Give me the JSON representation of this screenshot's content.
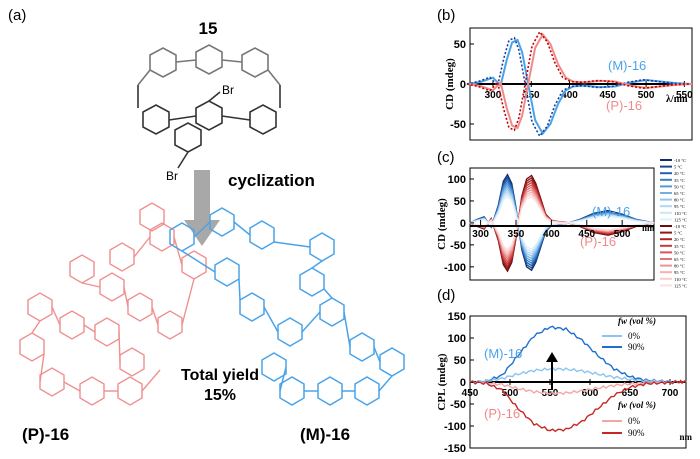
{
  "panel_a": {
    "label": "(a)",
    "compound": "15",
    "br_top": "Br",
    "br_bottom": "Br",
    "reaction": "cyclization",
    "yield_line1": "Total yield",
    "yield_line2": "15%",
    "p_label": "(P)-16",
    "m_label": "(M)-16",
    "colors": {
      "P": "#f08a8a",
      "M": "#4aa3e8",
      "gray": "#888888"
    }
  },
  "chart_data": [
    {
      "panel": "(b)",
      "type": "line",
      "ylabel": "CD (mdeg)",
      "xlabel": "λ/nm",
      "yticks": [
        "50",
        "0",
        "-50"
      ],
      "xticks": [
        "300",
        "350",
        "400",
        "450",
        "500",
        "550"
      ],
      "xlim": [
        270,
        560
      ],
      "ylim": [
        -70,
        70
      ],
      "series_labels": {
        "M": "(M)-16",
        "P": "(P)-16"
      },
      "series": [
        {
          "name": "(M)-16",
          "color": "#4aa3e8",
          "x": [
            270,
            285,
            300,
            310,
            318,
            325,
            332,
            338,
            345,
            355,
            365,
            375,
            385,
            395,
            405,
            420,
            440,
            460,
            480,
            500,
            520,
            540,
            560
          ],
          "y": [
            0,
            3,
            8,
            -2,
            30,
            52,
            55,
            40,
            5,
            -45,
            -62,
            -50,
            -25,
            -8,
            -3,
            -2,
            -4,
            -3,
            2,
            5,
            3,
            1,
            0
          ]
        },
        {
          "name": "(P)-16",
          "color": "#f08a8a",
          "x": [
            270,
            285,
            300,
            310,
            318,
            325,
            332,
            338,
            345,
            355,
            365,
            375,
            385,
            395,
            405,
            420,
            440,
            460,
            480,
            500,
            520,
            540,
            560
          ],
          "y": [
            0,
            -3,
            -8,
            2,
            -30,
            -52,
            -55,
            -40,
            -5,
            45,
            62,
            50,
            25,
            8,
            3,
            2,
            4,
            3,
            -2,
            -5,
            -3,
            -1,
            0
          ]
        }
      ]
    },
    {
      "panel": "(c)",
      "type": "line",
      "ylabel": "CD (mdeg)",
      "xlabel": "nm",
      "yticks": [
        "100",
        "50",
        "0",
        "-50",
        "-100"
      ],
      "xticks": [
        "300",
        "350",
        "400",
        "450",
        "500"
      ],
      "xlim": [
        285,
        545
      ],
      "ylim": [
        -130,
        125
      ],
      "series_labels": {
        "M": "(M)-16",
        "P": "(P)-16"
      },
      "temperatures": [
        "-10 °C",
        "5 °C",
        "20 °C",
        "35 °C",
        "50 °C",
        "65 °C",
        "80 °C",
        "95 °C",
        "110 °C",
        "125 °C"
      ],
      "x": [
        285,
        295,
        305,
        315,
        325,
        332,
        338,
        344,
        350,
        358,
        365,
        372,
        378,
        385,
        392,
        400,
        410,
        420,
        440,
        460,
        480,
        500,
        520,
        545
      ],
      "series": [
        {
          "name": "(M)-16 -10 °C",
          "scale": 1.0,
          "y": [
            0,
            8,
            14,
            -10,
            40,
            95,
            110,
            90,
            35,
            -60,
            -100,
            -108,
            -90,
            -55,
            -20,
            -6,
            -3,
            -2,
            8,
            22,
            28,
            20,
            8,
            0
          ]
        },
        {
          "name": "(M)-16 125 °C",
          "scale": 0.55,
          "y": [
            0,
            4,
            8,
            -6,
            22,
            52,
            60,
            50,
            20,
            -33,
            -55,
            -60,
            -50,
            -30,
            -11,
            -3,
            -2,
            -1,
            4,
            12,
            15,
            11,
            4,
            0
          ]
        }
      ]
    },
    {
      "panel": "(d)",
      "type": "line",
      "ylabel": "CPL (mdeg)",
      "xlabel": "nm",
      "yticks": [
        "150",
        "100",
        "50",
        "0",
        "-50",
        "-100",
        "-150"
      ],
      "xticks": [
        "450",
        "500",
        "550",
        "600",
        "650",
        "700"
      ],
      "xlim": [
        450,
        720
      ],
      "ylim": [
        -150,
        150
      ],
      "legend_title": "fw (vol %)",
      "legend_upper": [
        "0%",
        "90%"
      ],
      "legend_lower": [
        "0%",
        "90%"
      ],
      "series_labels": {
        "M": "(M)-16",
        "P": "(P)-16"
      },
      "x": [
        450,
        470,
        490,
        510,
        530,
        550,
        570,
        590,
        610,
        630,
        650,
        670,
        690,
        710,
        720
      ],
      "series": [
        {
          "name": "(M)-16 90%",
          "color": "#1f6fd0",
          "y": [
            0,
            2,
            15,
            60,
            105,
            125,
            120,
            95,
            60,
            30,
            12,
            4,
            2,
            0,
            0
          ]
        },
        {
          "name": "(M)-16 0%",
          "color": "#8cc4f0",
          "y": [
            0,
            2,
            8,
            18,
            26,
            30,
            29,
            25,
            18,
            11,
            6,
            2,
            1,
            0,
            0
          ]
        },
        {
          "name": "(P)-16 0%",
          "color": "#f4a6a6",
          "y": [
            0,
            -2,
            -6,
            -15,
            -22,
            -26,
            -25,
            -20,
            -14,
            -8,
            -4,
            -2,
            -1,
            0,
            0
          ]
        },
        {
          "name": "(P)-16 90%",
          "color": "#c62828",
          "y": [
            0,
            -3,
            -18,
            -60,
            -95,
            -110,
            -108,
            -90,
            -60,
            -30,
            -12,
            -4,
            -2,
            0,
            0
          ]
        }
      ]
    }
  ]
}
